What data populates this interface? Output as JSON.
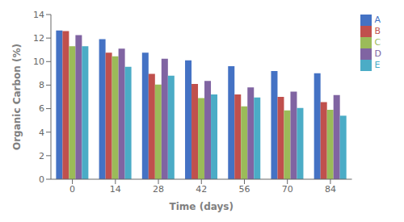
{
  "chart_data": {
    "type": "bar",
    "categories": [
      "0",
      "14",
      "28",
      "42",
      "56",
      "70",
      "84"
    ],
    "series": [
      {
        "name": "A",
        "color": "#4472C4",
        "values": [
          12.65,
          11.9,
          10.75,
          10.1,
          9.6,
          9.2,
          9.0
        ]
      },
      {
        "name": "B",
        "color": "#C0504D",
        "values": [
          12.6,
          10.75,
          8.95,
          8.1,
          7.2,
          7.0,
          6.55
        ]
      },
      {
        "name": "C",
        "color": "#9BBB59",
        "values": [
          11.3,
          10.45,
          8.05,
          6.9,
          6.2,
          5.85,
          5.9
        ]
      },
      {
        "name": "D",
        "color": "#8064A2",
        "values": [
          12.25,
          11.1,
          10.25,
          8.35,
          7.8,
          7.45,
          7.15
        ]
      },
      {
        "name": "E",
        "color": "#4BACC6",
        "values": [
          11.3,
          9.55,
          8.8,
          7.2,
          6.95,
          6.05,
          5.4
        ]
      }
    ],
    "xlabel": "Time (days)",
    "ylabel": "Organic Carbon (%)",
    "ylim": [
      0,
      14
    ],
    "yticks": [
      0,
      2,
      4,
      6,
      8,
      10,
      12,
      14
    ],
    "grid": false,
    "legend": "right"
  }
}
